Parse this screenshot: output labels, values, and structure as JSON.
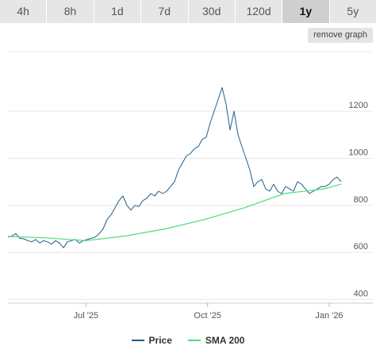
{
  "range_tabs": [
    {
      "label": "4h",
      "active": false
    },
    {
      "label": "8h",
      "active": false
    },
    {
      "label": "1d",
      "active": false
    },
    {
      "label": "7d",
      "active": false
    },
    {
      "label": "30d",
      "active": false
    },
    {
      "label": "120d",
      "active": false
    },
    {
      "label": "1y",
      "active": true
    },
    {
      "label": "5y",
      "active": false
    }
  ],
  "remove_graph_label": "remove graph",
  "colors": {
    "price": "#1f5f8b",
    "sma": "#4ddc7f",
    "grid": "#e8e8e8",
    "axis_text": "#555555"
  },
  "chart_data": {
    "type": "line",
    "y_ticks": [
      "400",
      "600",
      "800",
      "1000",
      "1200"
    ],
    "x_ticks": [
      "Jul '25",
      "Oct '25",
      "Jan '26"
    ],
    "ylim": [
      385,
      1480
    ],
    "grid": true,
    "legend_position": "bottom",
    "series": [
      {
        "name": "Price",
        "x": [
          "2025-05-03",
          "2025-05-06",
          "2025-05-09",
          "2025-05-12",
          "2025-05-15",
          "2025-05-18",
          "2025-05-21",
          "2025-05-24",
          "2025-05-27",
          "2025-05-30",
          "2025-06-02",
          "2025-06-05",
          "2025-06-08",
          "2025-06-11",
          "2025-06-14",
          "2025-06-17",
          "2025-06-20",
          "2025-06-23",
          "2025-06-26",
          "2025-06-29",
          "2025-07-02",
          "2025-07-05",
          "2025-07-08",
          "2025-07-11",
          "2025-07-14",
          "2025-07-17",
          "2025-07-20",
          "2025-07-23",
          "2025-07-26",
          "2025-07-29",
          "2025-08-01",
          "2025-08-04",
          "2025-08-07",
          "2025-08-10",
          "2025-08-13",
          "2025-08-16",
          "2025-08-19",
          "2025-08-22",
          "2025-08-25",
          "2025-08-28",
          "2025-08-31",
          "2025-09-03",
          "2025-09-06",
          "2025-09-09",
          "2025-09-12",
          "2025-09-15",
          "2025-09-18",
          "2025-09-21",
          "2025-09-24",
          "2025-09-27",
          "2025-09-30",
          "2025-10-03",
          "2025-10-06",
          "2025-10-09",
          "2025-10-12",
          "2025-10-15",
          "2025-10-18",
          "2025-10-21",
          "2025-10-24",
          "2025-10-27",
          "2025-10-30",
          "2025-11-02",
          "2025-11-05",
          "2025-11-08",
          "2025-11-11",
          "2025-11-14",
          "2025-11-17",
          "2025-11-20",
          "2025-11-23",
          "2025-11-26",
          "2025-11-29",
          "2025-12-02",
          "2025-12-05",
          "2025-12-08",
          "2025-12-11",
          "2025-12-14",
          "2025-12-17",
          "2025-12-20",
          "2025-12-23",
          "2025-12-26",
          "2025-12-29",
          "2026-01-01",
          "2026-01-04",
          "2026-01-07",
          "2026-01-10"
        ],
        "values": [
          665,
          670,
          680,
          660,
          658,
          650,
          645,
          655,
          640,
          650,
          645,
          635,
          650,
          640,
          620,
          645,
          650,
          655,
          640,
          650,
          655,
          660,
          665,
          680,
          700,
          740,
          760,
          790,
          820,
          840,
          800,
          780,
          800,
          795,
          820,
          830,
          850,
          840,
          860,
          850,
          860,
          880,
          900,
          950,
          980,
          1010,
          1020,
          1040,
          1050,
          1080,
          1090,
          1150,
          1200,
          1250,
          1300,
          1230,
          1120,
          1200,
          1100,
          1050,
          1000,
          950,
          880,
          900,
          910,
          870,
          860,
          890,
          860,
          850,
          880,
          870,
          860,
          900,
          890,
          870,
          850,
          860,
          870,
          880,
          880,
          890,
          910,
          920,
          900
        ]
      },
      {
        "name": "SMA 200",
        "x": [
          "2025-05-03",
          "2025-06-01",
          "2025-07-01",
          "2025-07-31",
          "2025-08-30",
          "2025-09-29",
          "2025-10-29",
          "2025-11-28",
          "2025-12-28",
          "2026-01-10"
        ],
        "values": [
          668,
          662,
          650,
          670,
          700,
          740,
          790,
          850,
          870,
          890
        ]
      }
    ]
  }
}
